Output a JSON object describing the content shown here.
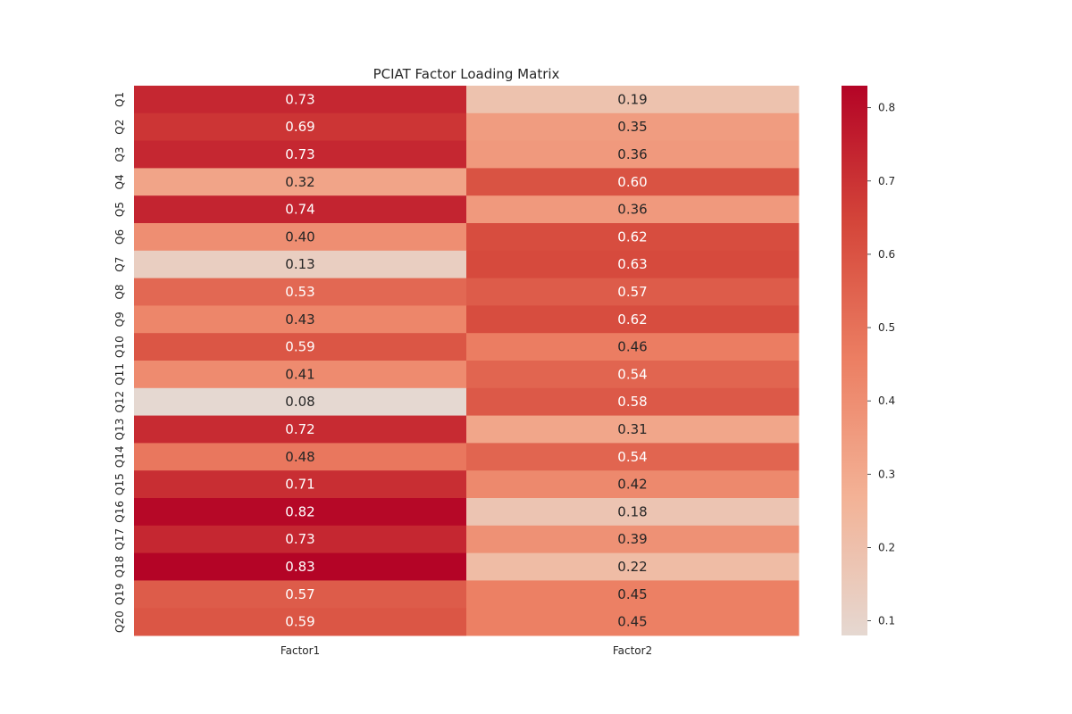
{
  "chart_data": {
    "type": "heatmap",
    "title": "PCIAT Factor Loading Matrix",
    "xlabel": "",
    "ylabel": "",
    "columns": [
      "Factor1",
      "Factor2"
    ],
    "rows": [
      "Q1",
      "Q2",
      "Q3",
      "Q4",
      "Q5",
      "Q6",
      "Q7",
      "Q8",
      "Q9",
      "Q10",
      "Q11",
      "Q12",
      "Q13",
      "Q14",
      "Q15",
      "Q16",
      "Q17",
      "Q18",
      "Q19",
      "Q20"
    ],
    "values": [
      [
        0.73,
        0.19
      ],
      [
        0.69,
        0.35
      ],
      [
        0.73,
        0.36
      ],
      [
        0.32,
        0.6
      ],
      [
        0.74,
        0.36
      ],
      [
        0.4,
        0.62
      ],
      [
        0.13,
        0.63
      ],
      [
        0.53,
        0.57
      ],
      [
        0.43,
        0.62
      ],
      [
        0.59,
        0.46
      ],
      [
        0.41,
        0.54
      ],
      [
        0.08,
        0.58
      ],
      [
        0.72,
        0.31
      ],
      [
        0.48,
        0.54
      ],
      [
        0.71,
        0.42
      ],
      [
        0.82,
        0.18
      ],
      [
        0.73,
        0.39
      ],
      [
        0.83,
        0.22
      ],
      [
        0.57,
        0.45
      ],
      [
        0.59,
        0.45
      ]
    ],
    "value_format": "0.00",
    "colormap": {
      "name": "coolwarm",
      "vmin": 0.08,
      "vmax": 0.83,
      "low_color": "#e5d8d1",
      "high_color": "#b40426"
    },
    "colorbar": {
      "ticks": [
        0.1,
        0.2,
        0.3,
        0.4,
        0.5,
        0.6,
        0.7,
        0.8
      ],
      "tick_labels": [
        "0.1",
        "0.2",
        "0.3",
        "0.4",
        "0.5",
        "0.6",
        "0.7",
        "0.8"
      ]
    },
    "grid": false
  }
}
